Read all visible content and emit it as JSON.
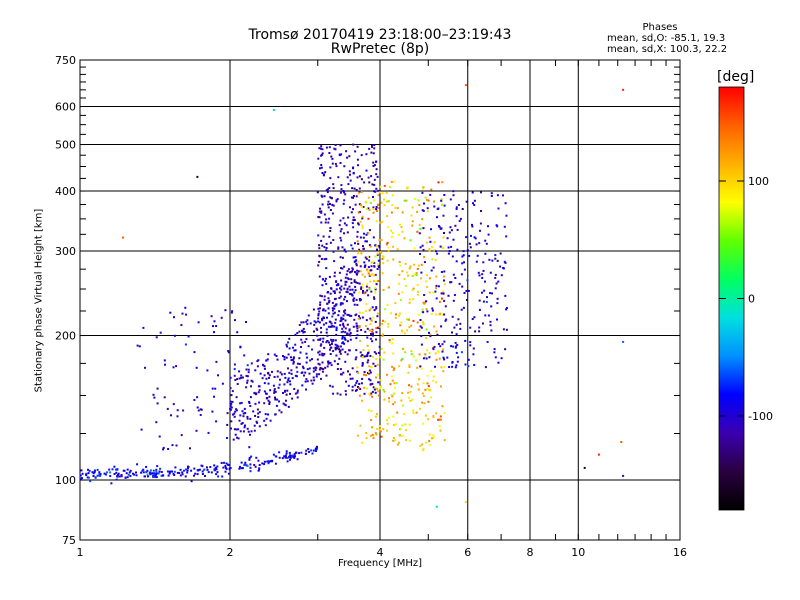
{
  "chart_data": {
    "type": "scatter",
    "title": "Tromsø 20170419 23:18:00–23:19:43",
    "subtitle": "RwPretec (8p)",
    "xlabel": "Frequency [MHz]",
    "ylabel": "Stationary phase Virtual Height [km]",
    "x_scale": "log",
    "y_scale": "log",
    "xlim": [
      1,
      16
    ],
    "ylim": [
      75,
      750
    ],
    "x_ticks": [
      1,
      2,
      4,
      6,
      8,
      10,
      16
    ],
    "x_tick_labels": [
      "1",
      "2",
      "4",
      "6",
      "8",
      "10",
      "16"
    ],
    "y_ticks": [
      75,
      100,
      200,
      300,
      400,
      500,
      600,
      750
    ],
    "y_tick_labels": [
      "75",
      "100",
      "200",
      "300",
      "400",
      "500",
      "600",
      "750"
    ],
    "grid": true,
    "phases_box": {
      "title": "Phases",
      "line_o": "mean, sd,O: -85.1, 19.3",
      "line_x": "mean, sd,X: 100.3, 22.2"
    },
    "colorbar": {
      "label": "[deg]",
      "range": [
        -180,
        180
      ],
      "ticks": [
        100,
        0,
        -100
      ],
      "tick_labels": [
        "100",
        "0",
        "-100"
      ],
      "colormap": [
        "#000000",
        "#2a0040",
        "#3a00b0",
        "#0000ff",
        "#0090ff",
        "#00e0e0",
        "#00ff60",
        "#60ff00",
        "#ffff00",
        "#ffb000",
        "#ff6000",
        "#ff0000"
      ]
    },
    "clusters": [
      {
        "name": "low-E trace",
        "x_range": [
          1.0,
          3.0
        ],
        "y_range": [
          103,
          118
        ],
        "phase": -90,
        "count": 260
      },
      {
        "name": "F-layer low frequency",
        "x_range": [
          2.0,
          3.6
        ],
        "y_range": [
          120,
          290
        ],
        "phase": -105,
        "count": 420
      },
      {
        "name": "F-layer main column",
        "x_range": [
          3.0,
          4.0
        ],
        "y_range": [
          150,
          500
        ],
        "phase": -110,
        "count": 520
      },
      {
        "name": "X-mode band",
        "x_range": [
          3.6,
          5.4
        ],
        "y_range": [
          115,
          420
        ],
        "phase": 105,
        "count": 480
      },
      {
        "name": "high frequency edge",
        "x_range": [
          4.8,
          7.2
        ],
        "y_range": [
          170,
          400
        ],
        "phase": -100,
        "count": 260
      },
      {
        "name": "E-region return",
        "x_range": [
          1.3,
          2.2
        ],
        "y_range": [
          115,
          230
        ],
        "phase": -100,
        "count": 90
      }
    ],
    "outliers": [
      {
        "x": 1.22,
        "y": 320,
        "phase": 150
      },
      {
        "x": 1.72,
        "y": 428,
        "phase": -160
      },
      {
        "x": 2.45,
        "y": 590,
        "phase": -20
      },
      {
        "x": 5.95,
        "y": 665,
        "phase": 150
      },
      {
        "x": 12.3,
        "y": 650,
        "phase": 170
      },
      {
        "x": 5.95,
        "y": 90,
        "phase": 100
      },
      {
        "x": 5.2,
        "y": 88,
        "phase": -20
      },
      {
        "x": 10.3,
        "y": 106,
        "phase": -160
      },
      {
        "x": 11.0,
        "y": 113,
        "phase": 170
      },
      {
        "x": 12.3,
        "y": 102,
        "phase": -110
      },
      {
        "x": 12.3,
        "y": 194,
        "phase": -60
      },
      {
        "x": 12.2,
        "y": 120,
        "phase": 150
      }
    ]
  }
}
